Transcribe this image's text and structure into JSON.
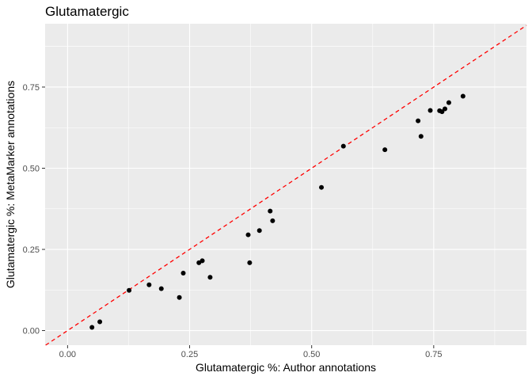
{
  "chart_data": {
    "type": "scatter",
    "title": "Glutamatergic",
    "xlabel": "Glutamatergic %: Author annotations",
    "ylabel": "Glutamatergic %: MetaMarker annotations",
    "xlim": [
      -0.046,
      0.94
    ],
    "ylim": [
      -0.045,
      0.945
    ],
    "x_ticks": [
      0,
      0.25,
      0.5,
      0.75
    ],
    "x_tick_labels": [
      "0.00",
      "0.25",
      "0.50",
      "0.75"
    ],
    "y_ticks": [
      0,
      0.25,
      0.5,
      0.75
    ],
    "y_tick_labels": [
      "0.00",
      "0.25",
      "0.50",
      "0.75"
    ],
    "grid": true,
    "reference_line": {
      "type": "identity",
      "slope": 1,
      "intercept": 0,
      "color": "#ff0000",
      "style": "dashed"
    },
    "point_color": "#000000",
    "panel_background": "#ebebeb",
    "points": [
      {
        "x": 0.05,
        "y": 0.01
      },
      {
        "x": 0.066,
        "y": 0.027
      },
      {
        "x": 0.126,
        "y": 0.124
      },
      {
        "x": 0.167,
        "y": 0.141
      },
      {
        "x": 0.192,
        "y": 0.129
      },
      {
        "x": 0.229,
        "y": 0.102
      },
      {
        "x": 0.237,
        "y": 0.177
      },
      {
        "x": 0.269,
        "y": 0.209
      },
      {
        "x": 0.276,
        "y": 0.215
      },
      {
        "x": 0.292,
        "y": 0.164
      },
      {
        "x": 0.37,
        "y": 0.295
      },
      {
        "x": 0.373,
        "y": 0.209
      },
      {
        "x": 0.393,
        "y": 0.308
      },
      {
        "x": 0.415,
        "y": 0.368
      },
      {
        "x": 0.42,
        "y": 0.338
      },
      {
        "x": 0.52,
        "y": 0.441
      },
      {
        "x": 0.565,
        "y": 0.568
      },
      {
        "x": 0.65,
        "y": 0.557
      },
      {
        "x": 0.718,
        "y": 0.646
      },
      {
        "x": 0.724,
        "y": 0.598
      },
      {
        "x": 0.743,
        "y": 0.678
      },
      {
        "x": 0.762,
        "y": 0.677
      },
      {
        "x": 0.767,
        "y": 0.674
      },
      {
        "x": 0.773,
        "y": 0.683
      },
      {
        "x": 0.781,
        "y": 0.702
      },
      {
        "x": 0.81,
        "y": 0.722
      }
    ]
  }
}
